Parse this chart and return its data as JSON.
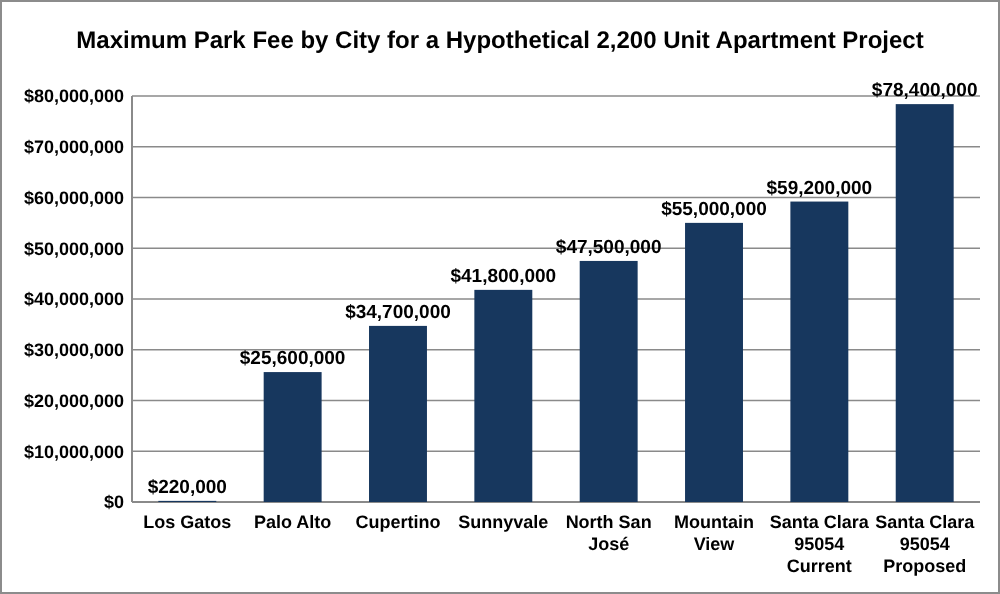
{
  "chart_data": {
    "type": "bar",
    "title": "Maximum Park Fee by City for a Hypothetical 2,200 Unit Apartment Project",
    "categories": [
      "Los Gatos",
      "Palo Alto",
      "Cupertino",
      "Sunnyvale",
      "North San José",
      "Mountain View",
      "Santa Clara 95054 Current",
      "Santa Clara 95054 Proposed"
    ],
    "values": [
      220000,
      25600000,
      34700000,
      41800000,
      47500000,
      55000000,
      59200000,
      78400000
    ],
    "value_labels": [
      "$220,000",
      "$25,600,000",
      "$34,700,000",
      "$41,800,000",
      "$47,500,000",
      "$55,000,000",
      "$59,200,000",
      "$78,400,000"
    ],
    "color": "#17375e",
    "grid": "y",
    "ylim": [
      0,
      80000000
    ],
    "yticks": [
      {
        "value": 0,
        "label": "$0"
      },
      {
        "value": 10000000,
        "label": "$10,000,000"
      },
      {
        "value": 20000000,
        "label": "$20,000,000"
      },
      {
        "value": 30000000,
        "label": "$30,000,000"
      },
      {
        "value": 40000000,
        "label": "$40,000,000"
      },
      {
        "value": 50000000,
        "label": "$50,000,000"
      },
      {
        "value": 60000000,
        "label": "$60,000,000"
      },
      {
        "value": 70000000,
        "label": "$70,000,000"
      },
      {
        "value": 80000000,
        "label": "$80,000,000"
      }
    ]
  }
}
